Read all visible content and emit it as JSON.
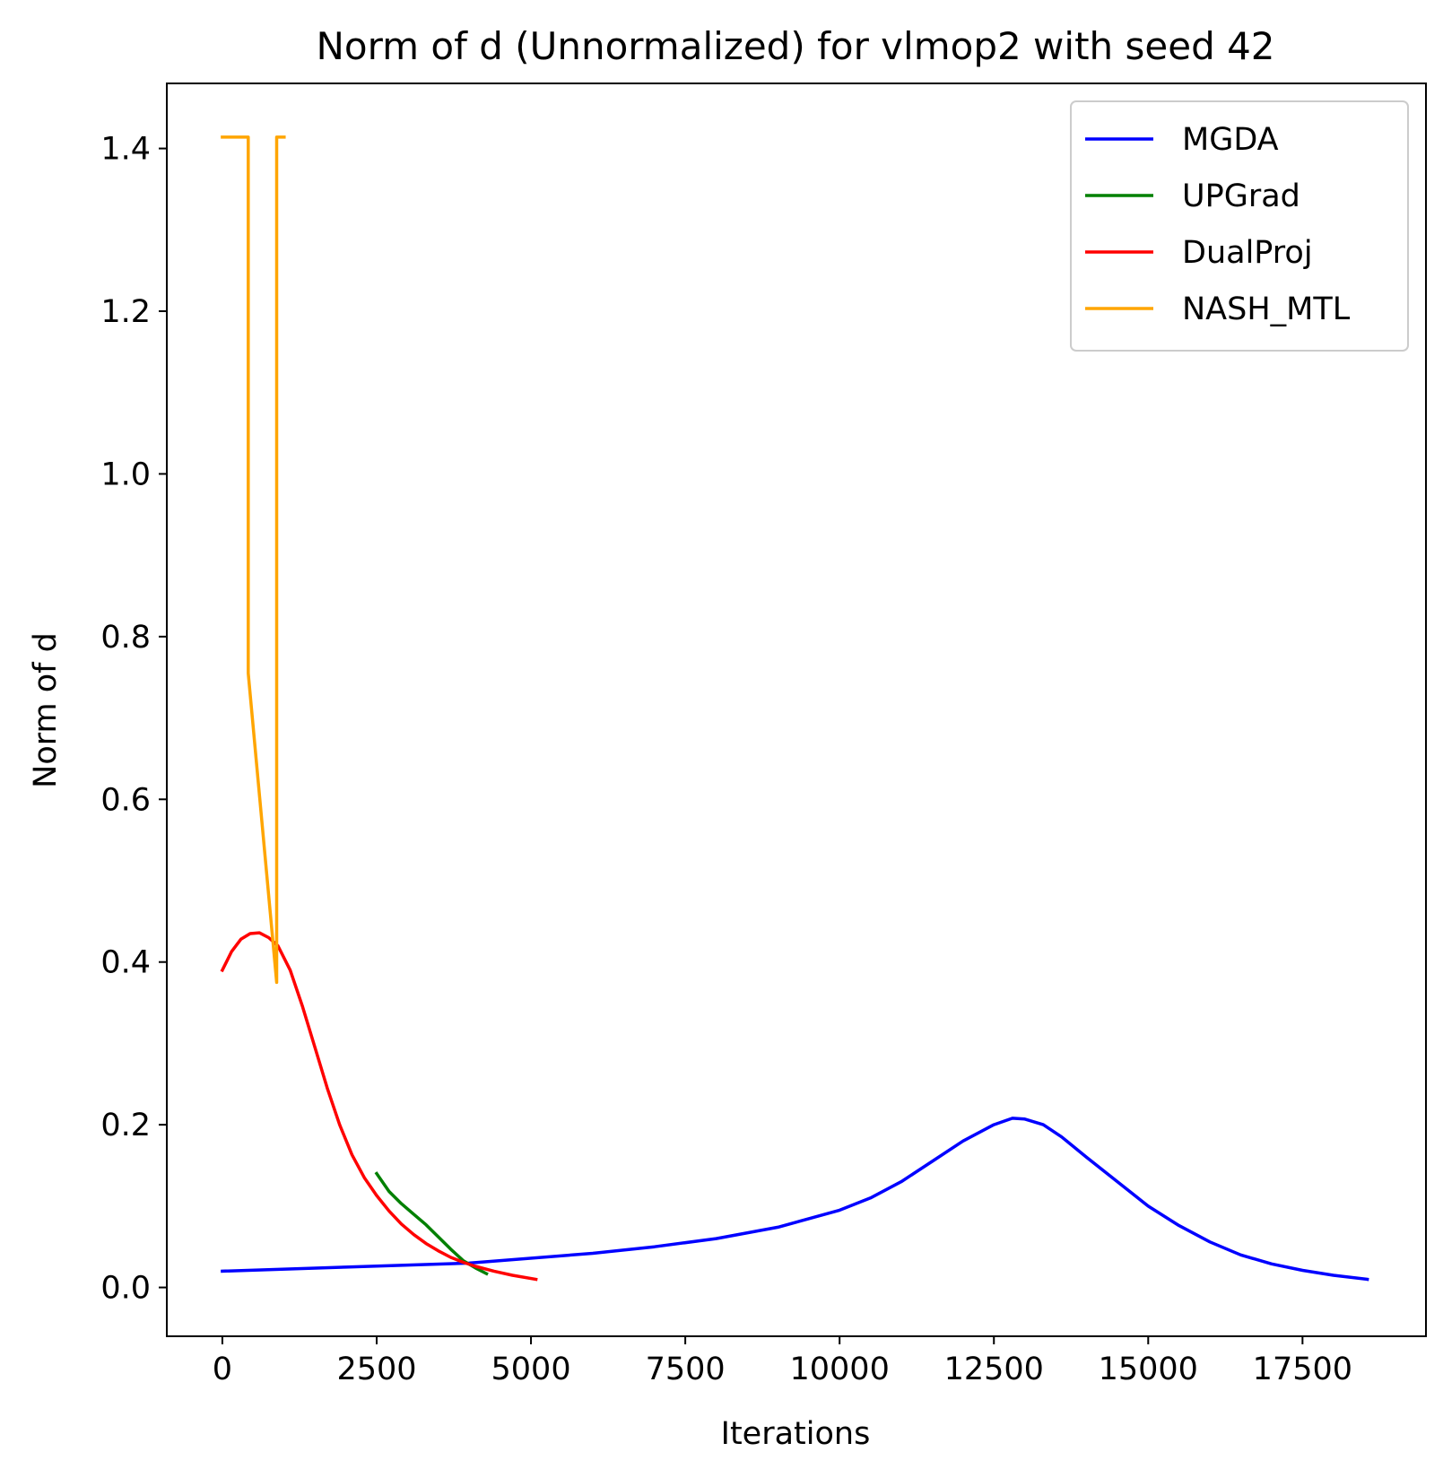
{
  "chart_data": {
    "type": "line",
    "title": "Norm of d (Unnormalized) for vlmop2 with seed 42",
    "xlabel": "Iterations",
    "ylabel": "Norm of d",
    "xlim": [
      -900,
      19500
    ],
    "ylim": [
      -0.06,
      1.48
    ],
    "xticks": [
      0,
      2500,
      5000,
      7500,
      10000,
      12500,
      15000,
      17500
    ],
    "xtick_labels": [
      "0",
      "2500",
      "5000",
      "7500",
      "10000",
      "12500",
      "15000",
      "17500"
    ],
    "yticks": [
      0.0,
      0.2,
      0.4,
      0.6,
      0.8,
      1.0,
      1.2,
      1.4
    ],
    "ytick_labels": [
      "0.0",
      "0.2",
      "0.4",
      "0.6",
      "0.8",
      "1.0",
      "1.2",
      "1.4"
    ],
    "grid": false,
    "legend_position": "top-right",
    "series": [
      {
        "name": "MGDA",
        "color": "#0000ff",
        "x": [
          0,
          2000,
          4000,
          6000,
          7000,
          8000,
          9000,
          10000,
          10500,
          11000,
          11500,
          12000,
          12500,
          12800,
          13000,
          13300,
          13600,
          14000,
          14500,
          15000,
          15500,
          16000,
          16500,
          17000,
          17500,
          18000,
          18550
        ],
        "y": [
          0.02,
          0.025,
          0.03,
          0.042,
          0.05,
          0.06,
          0.074,
          0.095,
          0.11,
          0.13,
          0.155,
          0.18,
          0.2,
          0.208,
          0.207,
          0.2,
          0.185,
          0.16,
          0.13,
          0.1,
          0.076,
          0.056,
          0.04,
          0.029,
          0.021,
          0.015,
          0.01
        ]
      },
      {
        "name": "UPGrad",
        "color": "#008000",
        "x": [
          2500,
          2700,
          2900,
          3100,
          3300,
          3500,
          3700,
          3900,
          4100,
          4280
        ],
        "y": [
          0.14,
          0.118,
          0.103,
          0.09,
          0.077,
          0.062,
          0.047,
          0.033,
          0.024,
          0.017
        ]
      },
      {
        "name": "DualProj",
        "color": "#ff0000",
        "x": [
          0,
          150,
          300,
          450,
          600,
          750,
          900,
          1100,
          1300,
          1500,
          1700,
          1900,
          2100,
          2300,
          2500,
          2700,
          2900,
          3100,
          3300,
          3500,
          3700,
          3900,
          4100,
          4400,
          4700,
          5080
        ],
        "y": [
          0.39,
          0.413,
          0.428,
          0.435,
          0.436,
          0.43,
          0.42,
          0.39,
          0.345,
          0.295,
          0.245,
          0.2,
          0.163,
          0.135,
          0.113,
          0.094,
          0.078,
          0.065,
          0.054,
          0.045,
          0.037,
          0.031,
          0.026,
          0.02,
          0.015,
          0.01
        ]
      },
      {
        "name": "NASH_MTL",
        "color": "#ffa500",
        "x": [
          0,
          420,
          420,
          880,
          880,
          1000
        ],
        "y": [
          1.414,
          1.414,
          0.755,
          0.375,
          1.414,
          1.414
        ]
      }
    ]
  }
}
